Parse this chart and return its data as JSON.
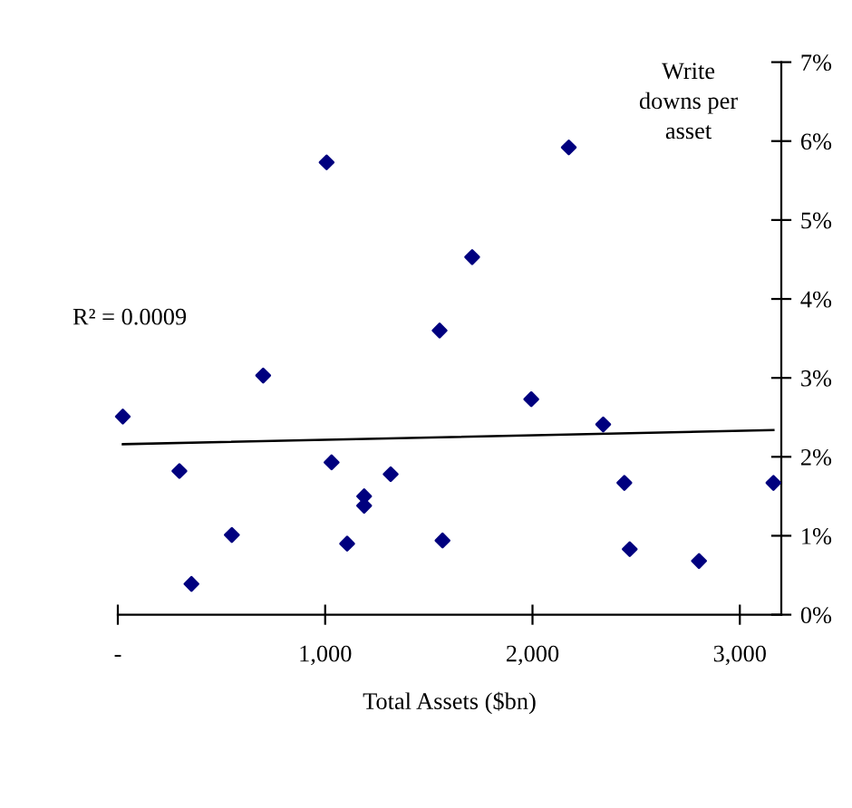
{
  "chart_data": {
    "type": "scatter",
    "xlabel": "Total Assets ($bn)",
    "ylabel": "Write downs per asset",
    "annotations": [
      "R² = 0.0009"
    ],
    "series": [
      {
        "color": "#00007f",
        "marker": "diamond",
        "x": [
          24,
          297,
          355,
          550,
          701,
          1031,
          1106,
          1188,
          1188,
          1316,
          1552,
          1566,
          1994,
          2341,
          2443,
          2469,
          2803,
          3162,
          1007,
          2175,
          1709
        ],
        "values": [
          2.51,
          1.82,
          0.39,
          1.01,
          3.03,
          1.93,
          0.9,
          1.5,
          1.38,
          1.78,
          3.6,
          0.94,
          2.73,
          2.41,
          1.67,
          0.83,
          0.68,
          1.67,
          5.73,
          5.92,
          4.53
        ]
      },
      {
        "type": "line",
        "color": "#000000",
        "marker": "none",
        "line_style": "solid",
        "x": [
          24,
          3162
        ],
        "values": [
          2.16,
          2.34
        ]
      }
    ],
    "xlim": [
      0,
      3200
    ],
    "ylim": [
      0,
      7
    ],
    "xticks": [
      {
        "value": 0,
        "label": "-"
      },
      {
        "value": 1000,
        "label": "1,000"
      },
      {
        "value": 2000,
        "label": "2,000"
      },
      {
        "value": 3000,
        "label": "3,000"
      }
    ],
    "yticks": [
      {
        "value": 0,
        "label": "0%"
      },
      {
        "value": 1,
        "label": "1%"
      },
      {
        "value": 2,
        "label": "2%"
      },
      {
        "value": 3,
        "label": "3%"
      },
      {
        "value": 4,
        "label": "4%"
      },
      {
        "value": 5,
        "label": "5%"
      },
      {
        "value": 6,
        "label": "6%"
      },
      {
        "value": 7,
        "label": "7%"
      }
    ],
    "grid": false,
    "legend": false
  }
}
